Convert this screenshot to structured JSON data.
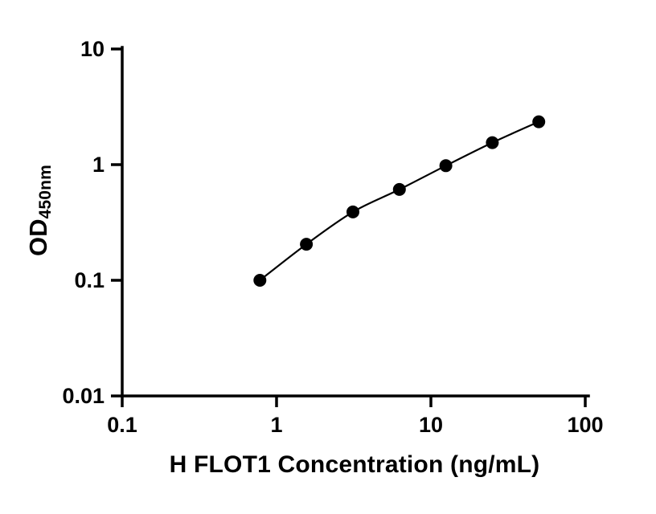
{
  "chart_data": {
    "type": "scatter",
    "title": "",
    "xlabel": "H FLOT1 Concentration (ng/mL)",
    "ylabel_main": "OD",
    "ylabel_sub": "450nm",
    "x_scale": "log",
    "y_scale": "log",
    "xlim": [
      0.1,
      100
    ],
    "ylim": [
      0.01,
      10
    ],
    "x": [
      0.78,
      1.56,
      3.125,
      6.25,
      12.5,
      25,
      50
    ],
    "y": [
      0.1,
      0.205,
      0.39,
      0.61,
      0.98,
      1.55,
      2.35
    ],
    "x_ticks": [
      "0.1",
      "1",
      "10",
      "100"
    ],
    "x_tick_values": [
      0.1,
      1,
      10,
      100
    ],
    "y_ticks": [
      "0.01",
      "0.1",
      "1",
      "10"
    ],
    "y_tick_values": [
      0.01,
      0.1,
      1,
      10
    ],
    "grid": "off",
    "legend": "none",
    "axis_color": "#000000",
    "line_color": "#000000",
    "point_color": "#000000",
    "background": "#ffffff"
  }
}
